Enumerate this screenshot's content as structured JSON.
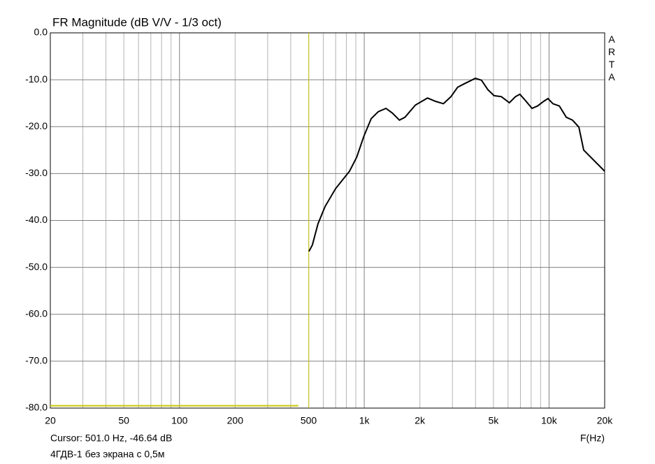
{
  "chart_data": {
    "type": "line",
    "title": "FR Magnitude (dB V/V - 1/3 oct)",
    "x_label": "F(Hz)",
    "watermark": "ARTA",
    "cursor": {
      "x": 501,
      "y": -46.64,
      "label": "Cursor: 501.0 Hz, -46.64 dB",
      "color": "#c8c800"
    },
    "footer": "4ГДВ-1 без экрана с 0,5м",
    "x_log": true,
    "xlim": [
      20,
      20000
    ],
    "ylim": [
      -80,
      0
    ],
    "xticks": [
      20,
      50,
      100,
      200,
      500,
      {
        "value": 1000,
        "label": "1k"
      },
      {
        "value": 2000,
        "label": "2k"
      },
      {
        "value": 5000,
        "label": "5k"
      },
      {
        "value": 10000,
        "label": "10k"
      },
      {
        "value": 20000,
        "label": "20k"
      }
    ],
    "x_gridlines": [
      20,
      30,
      40,
      50,
      60,
      70,
      80,
      90,
      100,
      200,
      300,
      400,
      500,
      600,
      700,
      800,
      900,
      1000,
      2000,
      3000,
      4000,
      5000,
      6000,
      7000,
      8000,
      9000,
      10000,
      20000
    ],
    "yticks": [
      {
        "value": 0,
        "label": "0.0"
      },
      {
        "value": -10,
        "label": "-10.0"
      },
      {
        "value": -20,
        "label": "-20.0"
      },
      {
        "value": -30,
        "label": "-30.0"
      },
      {
        "value": -40,
        "label": "-40.0"
      },
      {
        "value": -50,
        "label": "-50.0"
      },
      {
        "value": -60,
        "label": "-60.0"
      },
      {
        "value": -70,
        "label": "-70.0"
      },
      {
        "value": -80,
        "label": "-80.0"
      }
    ],
    "grid": true,
    "series": [
      {
        "color": "#000000",
        "x": [
          502,
          524,
          562,
          614,
          700,
          832,
          910,
          994,
          1090,
          1190,
          1310,
          1420,
          1550,
          1660,
          1890,
          2200,
          2430,
          2680,
          2944,
          3200,
          3460,
          3990,
          4310,
          4660,
          5040,
          5520,
          6100,
          6580,
          6950,
          7400,
          8090,
          8660,
          9360,
          9870,
          10500,
          11370,
          12400,
          13400,
          14500,
          15400,
          20000
        ],
        "values": [
          -46.6,
          -45.2,
          -40.7,
          -37.0,
          -33.2,
          -29.5,
          -26.5,
          -22.1,
          -18.3,
          -16.8,
          -16.1,
          -17.1,
          -18.6,
          -18.0,
          -15.4,
          -13.9,
          -14.6,
          -15.1,
          -13.6,
          -11.6,
          -10.9,
          -9.7,
          -10.1,
          -12.1,
          -13.4,
          -13.6,
          -14.9,
          -13.6,
          -13.1,
          -14.3,
          -16.1,
          -15.6,
          -14.6,
          -14.0,
          -15.1,
          -15.6,
          -18.0,
          -18.6,
          -20.1,
          -25.0,
          -29.5
        ]
      },
      {
        "color": "#c8c800",
        "x": [
          20,
          440
        ],
        "values": [
          -79.5,
          -79.5
        ]
      }
    ]
  }
}
